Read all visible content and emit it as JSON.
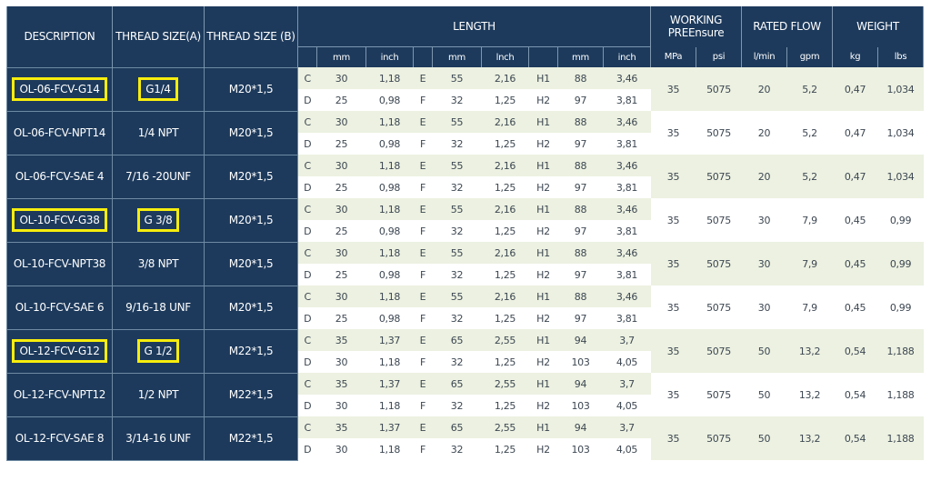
{
  "headers": {
    "description": "DESCRIPTION",
    "thread_a": "THREAD SIZE(A)",
    "thread_b": "THREAD SIZE (B)",
    "length": "LENGTH",
    "working_line1": "WORKING",
    "working_line2": "PREEnsure",
    "rated_flow": "RATED FLOW",
    "weight": "WEIGHT",
    "units": [
      "mm",
      "inch",
      "",
      "mm",
      "lnch",
      "",
      "mm",
      "inch",
      "MPa",
      "psi",
      "l/min",
      "gpm",
      "kg",
      "lbs"
    ]
  },
  "products": [
    {
      "description": "OL-06-FCV-G14",
      "thread_a": "G1/4",
      "thread_b": "M20*1,5",
      "highlight": true,
      "rows": [
        [
          "C",
          "30",
          "1,18",
          "E",
          "55",
          "2,16",
          "H1",
          "88",
          "3,46"
        ],
        [
          "D",
          "25",
          "0,98",
          "F",
          "32",
          "1,25",
          "H2",
          "97",
          "3,81"
        ]
      ],
      "mpa": "35",
      "psi": "5075",
      "lmin": "20",
      "gpm": "5,2",
      "kg": "0,47",
      "lbs": "1,034"
    },
    {
      "description": "OL-06-FCV-NPT14",
      "thread_a": "1/4 NPT",
      "thread_b": "M20*1,5",
      "highlight": false,
      "rows": [
        [
          "C",
          "30",
          "1,18",
          "E",
          "55",
          "2,16",
          "H1",
          "88",
          "3,46"
        ],
        [
          "D",
          "25",
          "0,98",
          "F",
          "32",
          "1,25",
          "H2",
          "97",
          "3,81"
        ]
      ],
      "mpa": "35",
      "psi": "5075",
      "lmin": "20",
      "gpm": "5,2",
      "kg": "0,47",
      "lbs": "1,034"
    },
    {
      "description": "OL-06-FCV-SAE 4",
      "thread_a": "7/16 -20UNF",
      "thread_b": "M20*1,5",
      "highlight": false,
      "rows": [
        [
          "C",
          "30",
          "1,18",
          "E",
          "55",
          "2,16",
          "H1",
          "88",
          "3,46"
        ],
        [
          "D",
          "25",
          "0,98",
          "F",
          "32",
          "1,25",
          "H2",
          "97",
          "3,81"
        ]
      ],
      "mpa": "35",
      "psi": "5075",
      "lmin": "20",
      "gpm": "5,2",
      "kg": "0,47",
      "lbs": "1,034"
    },
    {
      "description": "OL-10-FCV-G38",
      "thread_a": "G 3/8",
      "thread_b": "M20*1,5",
      "highlight": true,
      "rows": [
        [
          "C",
          "30",
          "1,18",
          "E",
          "55",
          "2,16",
          "H1",
          "88",
          "3,46"
        ],
        [
          "D",
          "25",
          "0,98",
          "F",
          "32",
          "1,25",
          "H2",
          "97",
          "3,81"
        ]
      ],
      "mpa": "35",
      "psi": "5075",
      "lmin": "30",
      "gpm": "7,9",
      "kg": "0,45",
      "lbs": "0,99"
    },
    {
      "description": "OL-10-FCV-NPT38",
      "thread_a": "3/8 NPT",
      "thread_b": "M20*1,5",
      "highlight": false,
      "rows": [
        [
          "C",
          "30",
          "1,18",
          "E",
          "55",
          "2,16",
          "H1",
          "88",
          "3,46"
        ],
        [
          "D",
          "25",
          "0,98",
          "F",
          "32",
          "1,25",
          "H2",
          "97",
          "3,81"
        ]
      ],
      "mpa": "35",
      "psi": "5075",
      "lmin": "30",
      "gpm": "7,9",
      "kg": "0,45",
      "lbs": "0,99"
    },
    {
      "description": "OL-10-FCV-SAE 6",
      "thread_a": "9/16-18 UNF",
      "thread_b": "M20*1,5",
      "highlight": false,
      "rows": [
        [
          "C",
          "30",
          "1,18",
          "E",
          "55",
          "2,16",
          "H1",
          "88",
          "3,46"
        ],
        [
          "D",
          "25",
          "0,98",
          "F",
          "32",
          "1,25",
          "H2",
          "97",
          "3,81"
        ]
      ],
      "mpa": "35",
      "psi": "5075",
      "lmin": "30",
      "gpm": "7,9",
      "kg": "0,45",
      "lbs": "0,99"
    },
    {
      "description": "OL-12-FCV-G12",
      "thread_a": "G 1/2",
      "thread_b": "M22*1,5",
      "highlight": true,
      "rows": [
        [
          "C",
          "35",
          "1,37",
          "E",
          "65",
          "2,55",
          "H1",
          "94",
          "3,7"
        ],
        [
          "D",
          "30",
          "1,18",
          "F",
          "32",
          "1,25",
          "H2",
          "103",
          "4,05"
        ]
      ],
      "mpa": "35",
      "psi": "5075",
      "lmin": "50",
      "gpm": "13,2",
      "kg": "0,54",
      "lbs": "1,188"
    },
    {
      "description": "OL-12-FCV-NPT12",
      "thread_a": "1/2 NPT",
      "thread_b": "M22*1,5",
      "highlight": false,
      "rows": [
        [
          "C",
          "35",
          "1,37",
          "E",
          "65",
          "2,55",
          "H1",
          "94",
          "3,7"
        ],
        [
          "D",
          "30",
          "1,18",
          "F",
          "32",
          "1,25",
          "H2",
          "103",
          "4,05"
        ]
      ],
      "mpa": "35",
      "psi": "5075",
      "lmin": "50",
      "gpm": "13,2",
      "kg": "0,54",
      "lbs": "1,188"
    },
    {
      "description": "OL-12-FCV-SAE 8",
      "thread_a": "3/14-16 UNF",
      "thread_b": "M22*1,5",
      "highlight": false,
      "rows": [
        [
          "C",
          "35",
          "1,37",
          "E",
          "65",
          "2,55",
          "H1",
          "94",
          "3,7"
        ],
        [
          "D",
          "30",
          "1,18",
          "F",
          "32",
          "1,25",
          "H2",
          "103",
          "4,05"
        ]
      ],
      "mpa": "35",
      "psi": "5075",
      "lmin": "50",
      "gpm": "13,2",
      "kg": "0,54",
      "lbs": "1,188"
    }
  ]
}
